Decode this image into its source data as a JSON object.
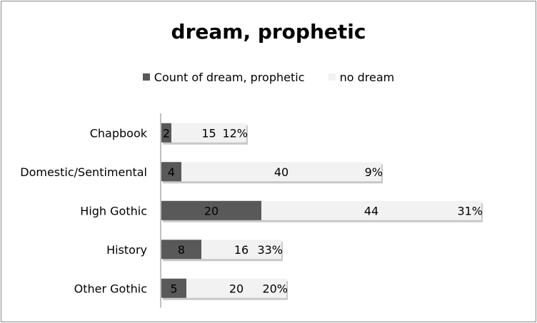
{
  "chart_data": {
    "type": "bar",
    "orientation": "horizontal",
    "stacked": true,
    "title": "dream, prophetic",
    "categories": [
      "Chapbook",
      "Domestic/Sentimental",
      "High Gothic",
      "History",
      "Other Gothic"
    ],
    "series": [
      {
        "name": "Count of dream, prophetic",
        "values": [
          2,
          4,
          20,
          8,
          5
        ],
        "color": "#595959"
      },
      {
        "name": "no dream",
        "values": [
          15,
          40,
          44,
          16,
          20
        ],
        "color": "#f2f2f2"
      }
    ],
    "percent_labels": [
      "12%",
      "9%",
      "31%",
      "33%",
      "20%"
    ],
    "legend_position": "top",
    "grid": false,
    "xlim": [
      0,
      66
    ]
  }
}
